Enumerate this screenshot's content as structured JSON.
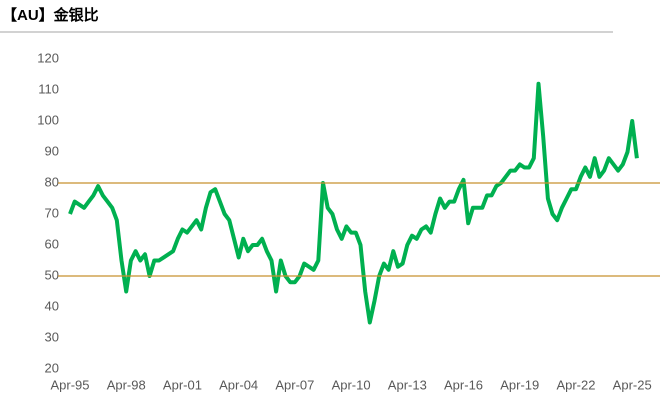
{
  "chart_data": {
    "type": "line",
    "title": "【AU】金银比",
    "x": [
      "1995-04",
      "1995-07",
      "1995-10",
      "1996-01",
      "1996-04",
      "1996-07",
      "1996-10",
      "1997-01",
      "1997-04",
      "1997-07",
      "1997-10",
      "1998-01",
      "1998-04",
      "1998-07",
      "1998-10",
      "1999-01",
      "1999-04",
      "1999-07",
      "1999-10",
      "2000-01",
      "2000-04",
      "2000-07",
      "2000-10",
      "2001-01",
      "2001-04",
      "2001-07",
      "2001-10",
      "2002-01",
      "2002-04",
      "2002-07",
      "2002-10",
      "2003-01",
      "2003-04",
      "2003-07",
      "2003-10",
      "2004-01",
      "2004-04",
      "2004-07",
      "2004-10",
      "2005-01",
      "2005-04",
      "2005-07",
      "2005-10",
      "2006-01",
      "2006-04",
      "2006-07",
      "2006-10",
      "2007-01",
      "2007-04",
      "2007-07",
      "2007-10",
      "2008-01",
      "2008-04",
      "2008-07",
      "2008-10",
      "2009-01",
      "2009-04",
      "2009-07",
      "2009-10",
      "2010-01",
      "2010-04",
      "2010-07",
      "2010-10",
      "2011-01",
      "2011-04",
      "2011-07",
      "2011-10",
      "2012-01",
      "2012-04",
      "2012-07",
      "2012-10",
      "2013-01",
      "2013-04",
      "2013-07",
      "2013-10",
      "2014-01",
      "2014-04",
      "2014-07",
      "2014-10",
      "2015-01",
      "2015-04",
      "2015-07",
      "2015-10",
      "2016-01",
      "2016-04",
      "2016-07",
      "2016-10",
      "2017-01",
      "2017-04",
      "2017-07",
      "2017-10",
      "2018-01",
      "2018-04",
      "2018-07",
      "2018-10",
      "2019-01",
      "2019-04",
      "2019-07",
      "2019-10",
      "2020-01",
      "2020-04",
      "2020-07",
      "2020-10",
      "2021-01",
      "2021-04",
      "2021-07",
      "2021-10",
      "2022-01",
      "2022-04",
      "2022-07",
      "2022-10",
      "2023-01",
      "2023-04",
      "2023-07",
      "2023-10",
      "2024-01",
      "2024-04",
      "2024-07",
      "2024-10",
      "2025-01",
      "2025-04",
      "2025-07"
    ],
    "series": [
      {
        "color": "#00b050",
        "values": [
          70,
          74,
          73,
          72,
          74,
          76,
          79,
          76,
          74,
          72,
          68,
          55,
          45,
          55,
          58,
          55,
          57,
          50,
          55,
          55,
          56,
          57,
          58,
          62,
          65,
          64,
          66,
          68,
          65,
          72,
          77,
          78,
          74,
          70,
          68,
          62,
          56,
          62,
          58,
          60,
          60,
          62,
          58,
          55,
          45,
          55,
          50,
          48,
          48,
          50,
          54,
          53,
          52,
          55,
          80,
          72,
          70,
          65,
          62,
          66,
          64,
          64,
          60,
          45,
          35,
          42,
          50,
          54,
          52,
          58,
          53,
          54,
          60,
          63,
          62,
          65,
          66,
          64,
          70,
          75,
          72,
          74,
          74,
          78,
          81,
          67,
          72,
          72,
          72,
          76,
          76,
          79,
          80,
          82,
          84,
          84,
          86,
          85,
          85,
          88,
          112,
          95,
          75,
          70,
          68,
          72,
          75,
          78,
          78,
          82,
          85,
          82,
          88,
          82,
          84,
          88,
          86,
          84,
          86,
          90,
          100,
          88
        ]
      }
    ],
    "xlim": [
      "1995-04",
      "2025-09"
    ],
    "xticks": [
      {
        "value": "1995-04",
        "label": "Apr-95"
      },
      {
        "value": "1998-04",
        "label": "Apr-98"
      },
      {
        "value": "2001-04",
        "label": "Apr-01"
      },
      {
        "value": "2004-04",
        "label": "Apr-04"
      },
      {
        "value": "2007-04",
        "label": "Apr-07"
      },
      {
        "value": "2010-04",
        "label": "Apr-10"
      },
      {
        "value": "2013-04",
        "label": "Apr-13"
      },
      {
        "value": "2016-04",
        "label": "Apr-16"
      },
      {
        "value": "2019-04",
        "label": "Apr-19"
      },
      {
        "value": "2022-04",
        "label": "Apr-22"
      },
      {
        "value": "2025-04",
        "label": "Apr-25"
      }
    ],
    "ylim": [
      20,
      120
    ],
    "yticks": [
      20,
      30,
      40,
      50,
      60,
      70,
      80,
      90,
      100,
      110,
      120
    ],
    "reference_lines": {
      "color": "#c8902e",
      "values": [
        80,
        50
      ]
    }
  }
}
